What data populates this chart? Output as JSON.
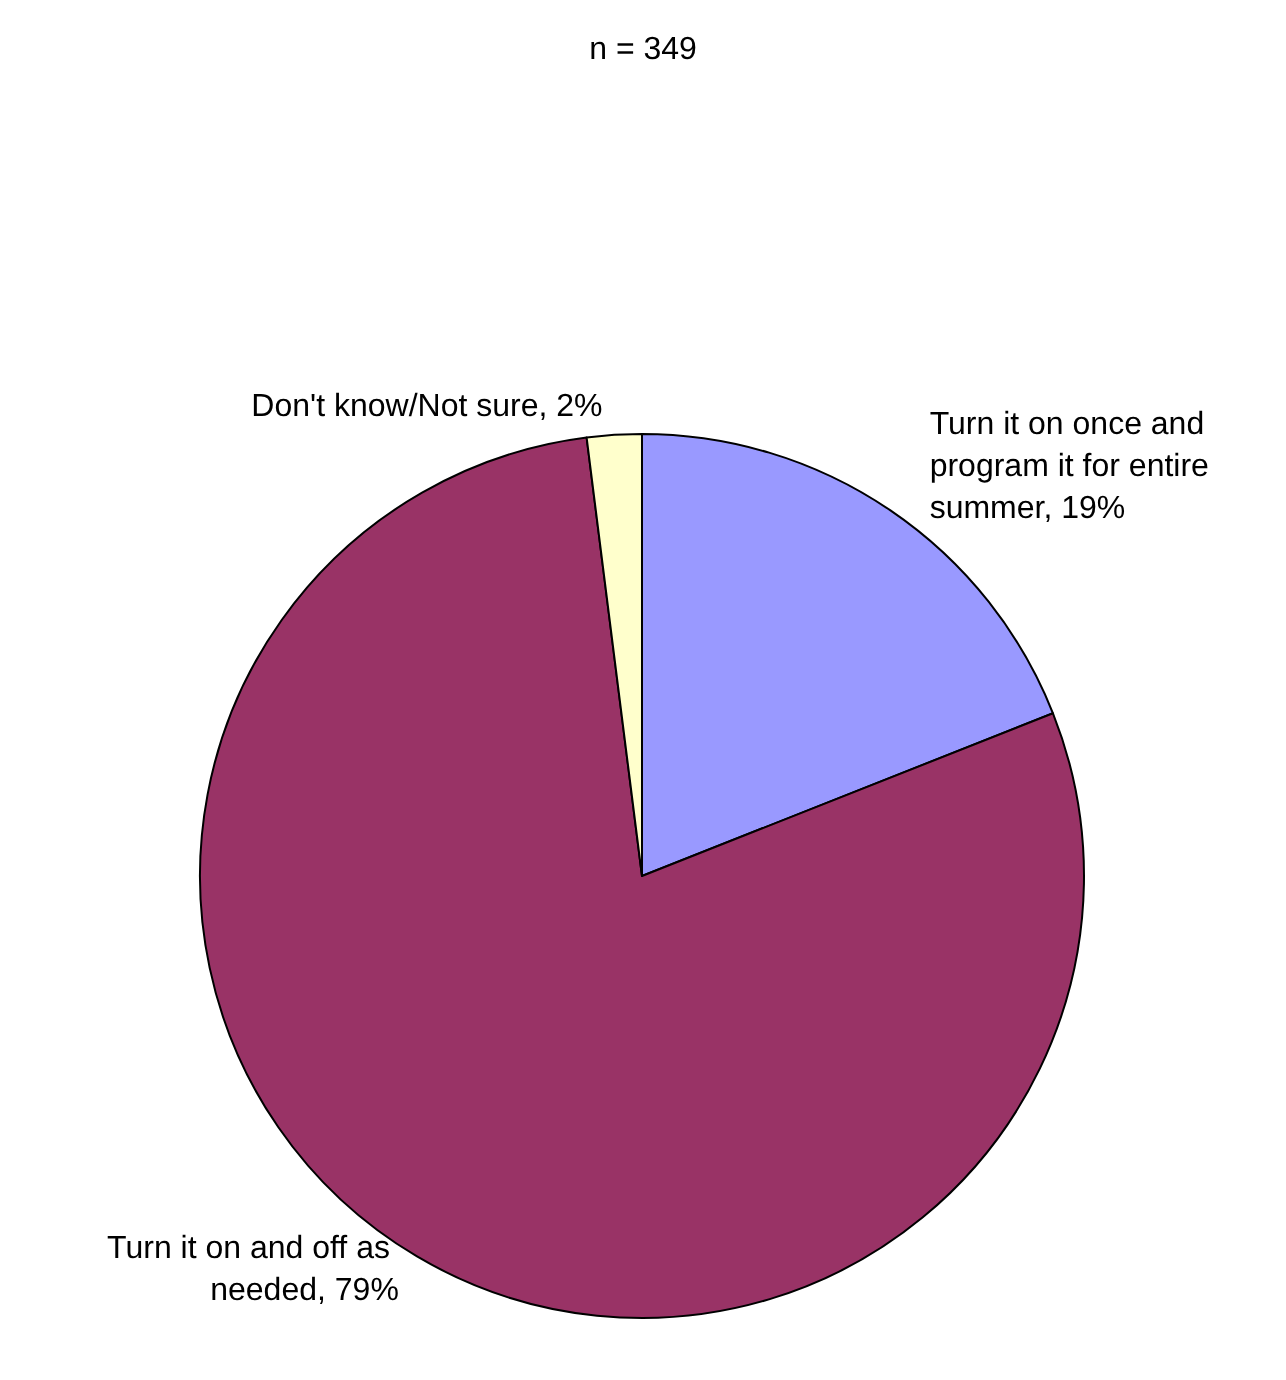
{
  "chart_data": {
    "type": "pie",
    "title": "n = 349",
    "categories": [
      "Turn it on once and program it for entire summer",
      "Turn it on and off as needed",
      "Don't know/Not sure"
    ],
    "values": [
      19,
      79,
      2
    ],
    "colors": [
      "#9999ff",
      "#993366",
      "#ffffcc"
    ],
    "value_labels": [
      "19%",
      "79%",
      "2%"
    ]
  }
}
